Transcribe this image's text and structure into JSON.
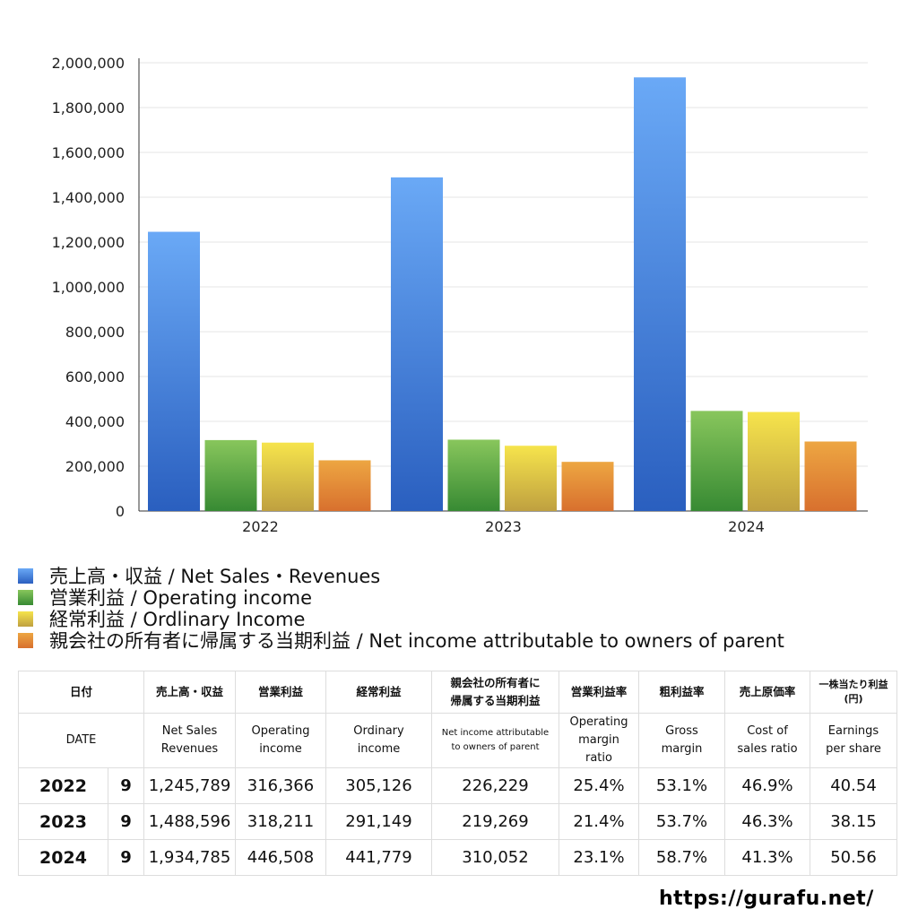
{
  "chart_data": {
    "type": "bar",
    "categories": [
      "2022",
      "2023",
      "2024"
    ],
    "series": [
      {
        "name": "売上高・収益 / Net Sales・Revenues",
        "color": "#4a86e0",
        "values": [
          1245789,
          1488596,
          1934785
        ]
      },
      {
        "name": "営業利益 / Operating income",
        "color": "#5aa846",
        "values": [
          316366,
          318211,
          446508
        ]
      },
      {
        "name": "経常利益 / Ordlinary Income",
        "color": "#e8cf48",
        "values": [
          305126,
          291149,
          441779
        ]
      },
      {
        "name": "親会社の所有者に帰属する当期利益 / Net income attributable to owners of parent",
        "color": "#e5883a",
        "values": [
          226229,
          219269,
          310052
        ]
      }
    ],
    "ylim": [
      0,
      2000000
    ],
    "yticks": [
      "0",
      "200,000",
      "400,000",
      "600,000",
      "800,000",
      "1,000,000",
      "1,200,000",
      "1,400,000",
      "1,600,000",
      "1,800,000",
      "2,000,000"
    ],
    "grid": true,
    "legend": "bottom-left"
  },
  "table": {
    "header_jp": [
      "日付",
      "売上高・収益",
      "営業利益",
      "経常利益",
      "親会社の所有者に",
      "帰属する当期利益",
      "営業利益率",
      "粗利益率",
      "売上原価率",
      "一株当たり利益",
      "(円)"
    ],
    "header_en": {
      "date": "DATE",
      "sales": [
        "Net Sales",
        "Revenues"
      ],
      "op": [
        "Operating",
        "income"
      ],
      "ord": [
        "Ordinary",
        "income"
      ],
      "net": [
        "Net income attributable",
        "to owners of parent"
      ],
      "opm": [
        "Operating",
        "margin",
        "ratio"
      ],
      "gm": [
        "Gross",
        "margin"
      ],
      "cos": [
        "Cost of",
        "sales ratio"
      ],
      "eps": [
        "Earnings",
        "per share"
      ]
    },
    "rows": [
      [
        "2022",
        "9",
        "1,245,789",
        "316,366",
        "305,126",
        "226,229",
        "25.4%",
        "53.1%",
        "46.9%",
        "40.54"
      ],
      [
        "2023",
        "9",
        "1,488,596",
        "318,211",
        "291,149",
        "219,269",
        "21.4%",
        "53.7%",
        "46.3%",
        "38.15"
      ],
      [
        "2024",
        "9",
        "1,934,785",
        "446,508",
        "441,779",
        "310,052",
        "23.1%",
        "58.7%",
        "41.3%",
        "50.56"
      ]
    ]
  },
  "footer": {
    "url": "https://gurafu.net/"
  }
}
